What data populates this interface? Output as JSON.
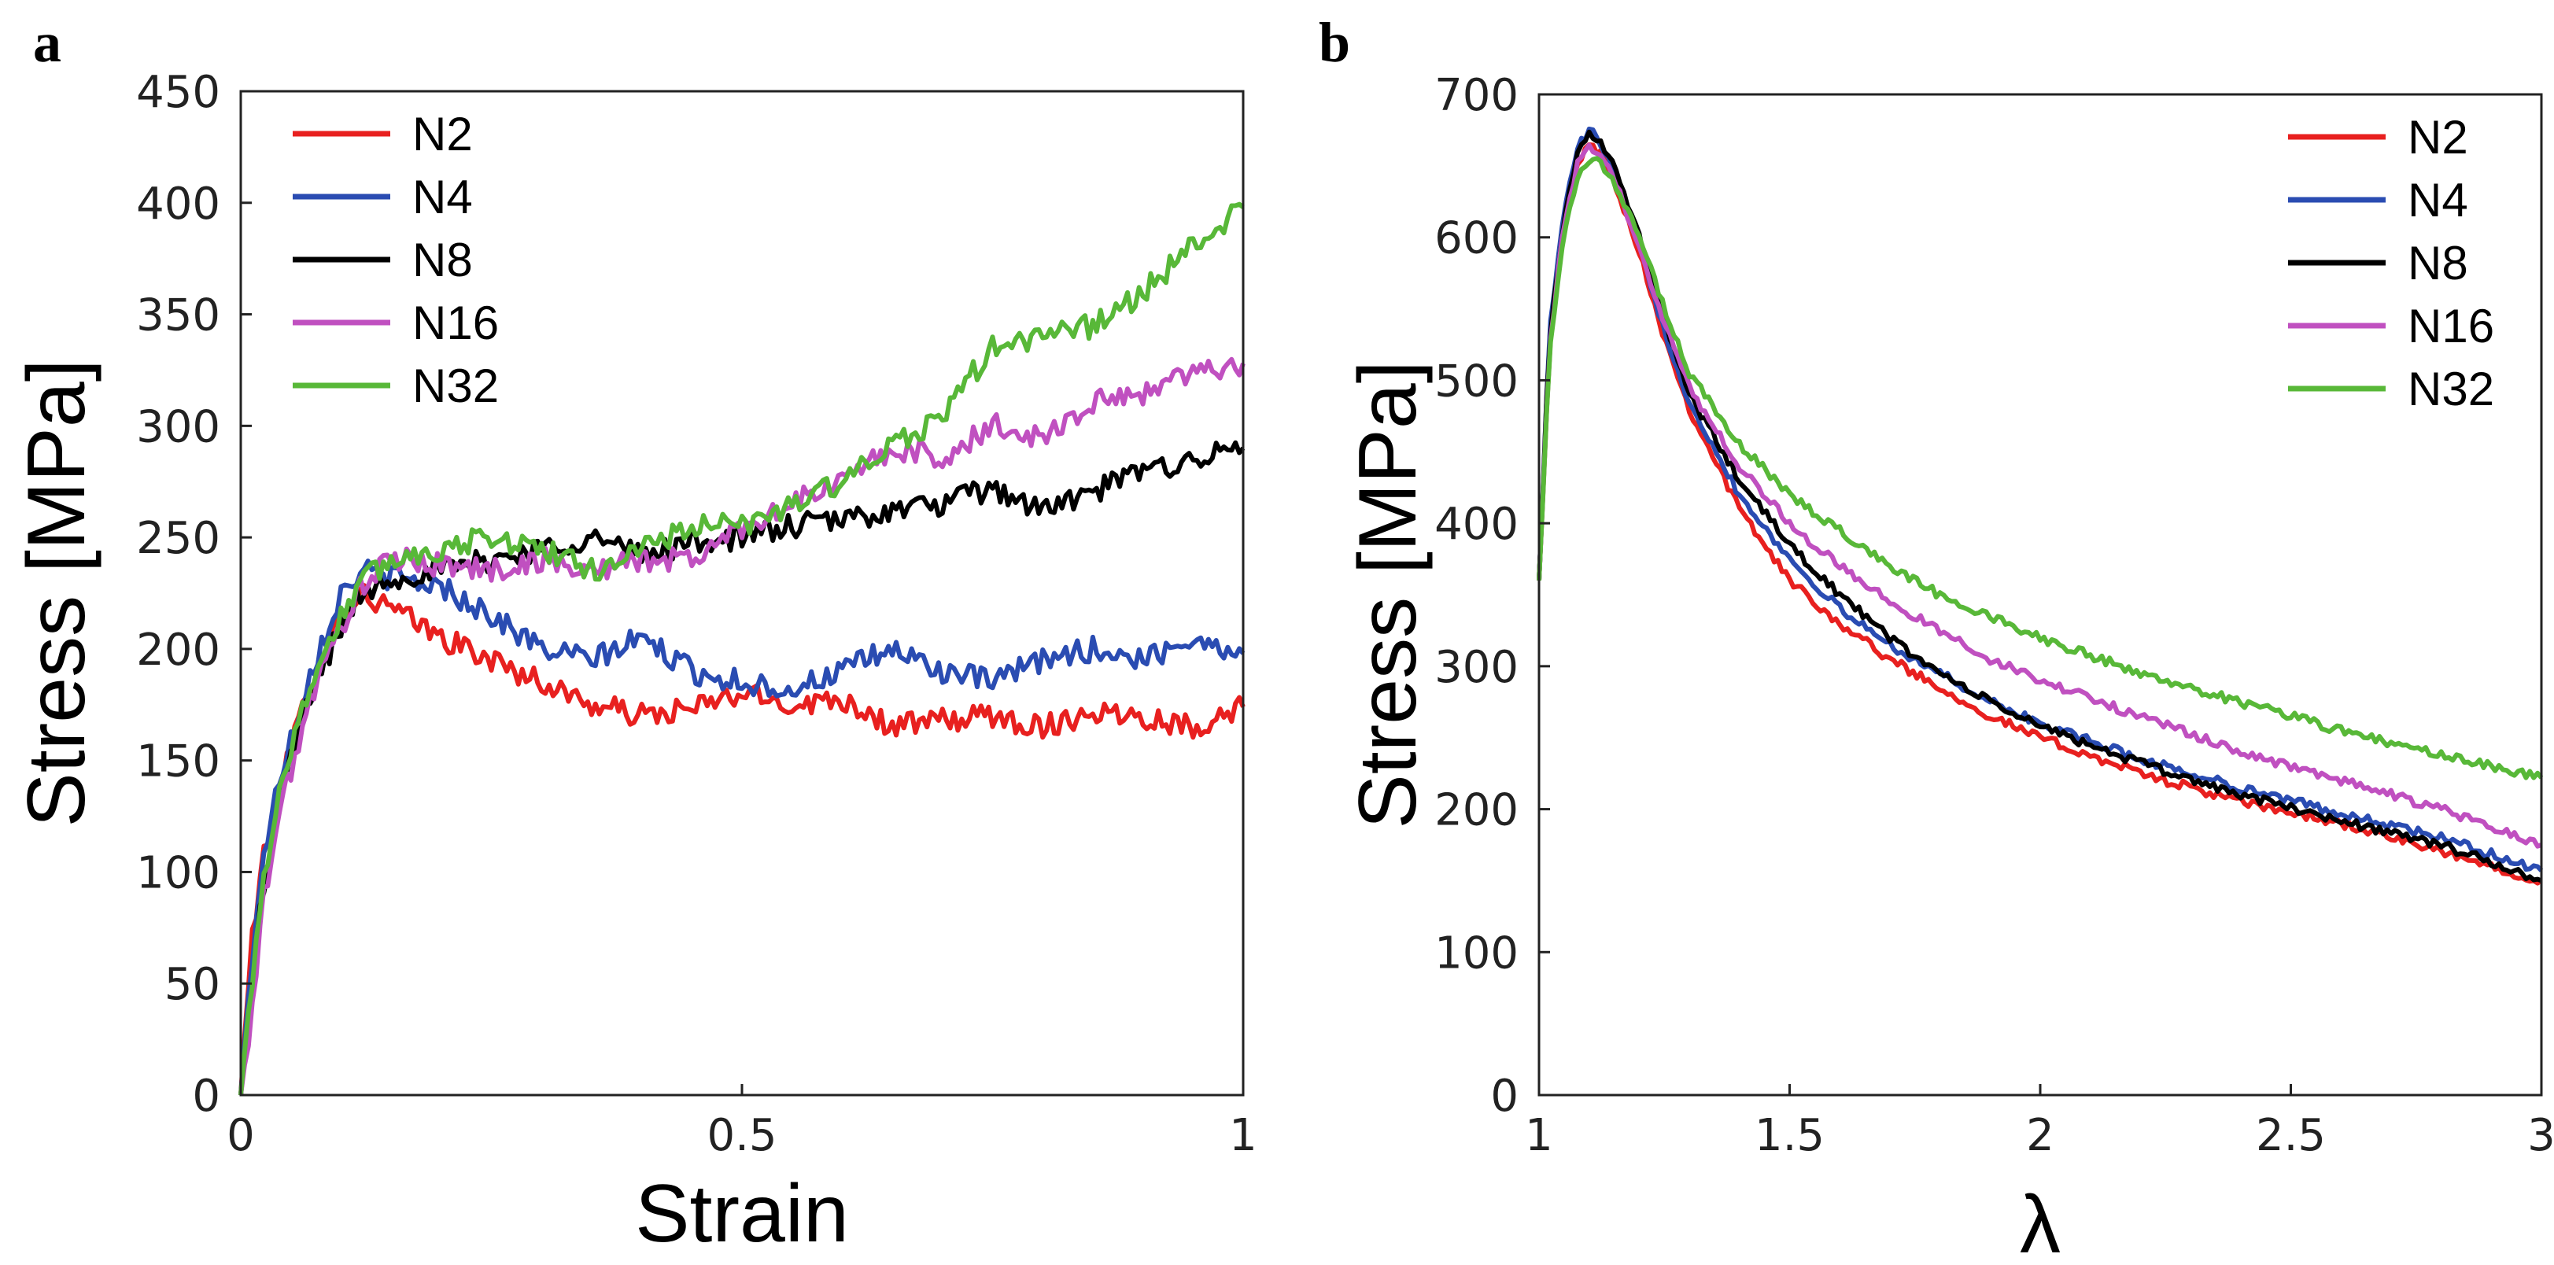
{
  "chart_data": [
    {
      "type": "line",
      "panel_label": "a",
      "xlabel": "Strain",
      "ylabel": "Stress [MPa]",
      "xlim": [
        0,
        1
      ],
      "ylim": [
        0,
        450
      ],
      "xticks": [
        0,
        0.5,
        1
      ],
      "xtick_labels": [
        "0",
        "0.5",
        "1"
      ],
      "yticks": [
        0,
        50,
        100,
        150,
        200,
        250,
        300,
        350,
        400,
        450
      ],
      "ytick_labels": [
        "0",
        "50",
        "100",
        "150",
        "200",
        "250",
        "300",
        "350",
        "400",
        "450"
      ],
      "grid": false,
      "legend_position": "top-left",
      "series": [
        {
          "name": "N2",
          "color": "#e8201f",
          "x": [
            0,
            0.01,
            0.02,
            0.04,
            0.07,
            0.1,
            0.12,
            0.15,
            0.2,
            0.25,
            0.3,
            0.35,
            0.4,
            0.45,
            0.5,
            0.55,
            0.6,
            0.65,
            0.7,
            0.75,
            0.8,
            0.85,
            0.9,
            0.95,
            1.0
          ],
          "y": [
            0,
            65,
            100,
            140,
            185,
            215,
            225,
            218,
            205,
            195,
            185,
            175,
            170,
            173,
            180,
            175,
            178,
            165,
            168,
            170,
            165,
            172,
            170,
            165,
            174
          ]
        },
        {
          "name": "N4",
          "color": "#2a4cb2",
          "x": [
            0,
            0.01,
            0.02,
            0.04,
            0.07,
            0.1,
            0.12,
            0.15,
            0.2,
            0.25,
            0.3,
            0.35,
            0.4,
            0.45,
            0.5,
            0.55,
            0.6,
            0.65,
            0.7,
            0.75,
            0.8,
            0.85,
            0.9,
            0.95,
            1.0
          ],
          "y": [
            0,
            55,
            100,
            145,
            190,
            225,
            235,
            232,
            228,
            215,
            200,
            195,
            205,
            190,
            185,
            182,
            190,
            200,
            190,
            185,
            195,
            200,
            195,
            205,
            198
          ]
        },
        {
          "name": "N8",
          "color": "#000000",
          "x": [
            0,
            0.01,
            0.02,
            0.04,
            0.07,
            0.1,
            0.12,
            0.15,
            0.2,
            0.25,
            0.3,
            0.35,
            0.4,
            0.45,
            0.5,
            0.55,
            0.6,
            0.65,
            0.7,
            0.75,
            0.8,
            0.85,
            0.9,
            0.95,
            1.0
          ],
          "y": [
            0,
            40,
            85,
            135,
            180,
            210,
            225,
            232,
            235,
            240,
            245,
            250,
            242,
            248,
            250,
            255,
            258,
            262,
            265,
            272,
            262,
            270,
            280,
            285,
            290
          ]
        },
        {
          "name": "N16",
          "color": "#c050c0",
          "x": [
            0,
            0.01,
            0.02,
            0.04,
            0.07,
            0.1,
            0.12,
            0.15,
            0.2,
            0.25,
            0.3,
            0.35,
            0.4,
            0.45,
            0.5,
            0.55,
            0.6,
            0.65,
            0.7,
            0.75,
            0.8,
            0.85,
            0.9,
            0.95,
            1.0
          ],
          "y": [
            0,
            30,
            80,
            130,
            178,
            210,
            228,
            240,
            238,
            235,
            240,
            235,
            240,
            240,
            255,
            265,
            275,
            290,
            285,
            300,
            295,
            310,
            315,
            325,
            328
          ]
        },
        {
          "name": "N32",
          "color": "#58b838",
          "x": [
            0,
            0.01,
            0.02,
            0.04,
            0.07,
            0.1,
            0.12,
            0.15,
            0.2,
            0.25,
            0.3,
            0.35,
            0.4,
            0.45,
            0.5,
            0.55,
            0.6,
            0.65,
            0.7,
            0.75,
            0.8,
            0.85,
            0.9,
            0.95,
            1.0
          ],
          "y": [
            0,
            45,
            90,
            140,
            185,
            215,
            230,
            240,
            245,
            250,
            245,
            235,
            245,
            255,
            255,
            265,
            275,
            290,
            305,
            335,
            340,
            345,
            360,
            380,
            398
          ]
        }
      ]
    },
    {
      "type": "line",
      "panel_label": "b",
      "xlabel": "λ",
      "ylabel": "Stress [MPa]",
      "xlim": [
        1,
        3
      ],
      "ylim": [
        0,
        700
      ],
      "xticks": [
        1,
        1.5,
        2,
        2.5,
        3
      ],
      "xtick_labels": [
        "1",
        "1.5",
        "2",
        "2.5",
        "3"
      ],
      "yticks": [
        0,
        100,
        200,
        300,
        400,
        500,
        600,
        700
      ],
      "ytick_labels": [
        "0",
        "100",
        "200",
        "300",
        "400",
        "500",
        "600",
        "700"
      ],
      "grid": false,
      "legend_position": "top-right",
      "series": [
        {
          "name": "N2",
          "color": "#e8201f",
          "x": [
            1.0,
            1.02,
            1.05,
            1.08,
            1.1,
            1.12,
            1.15,
            1.2,
            1.25,
            1.3,
            1.4,
            1.5,
            1.6,
            1.7,
            1.8,
            1.9,
            2.0,
            2.2,
            2.4,
            2.6,
            2.8,
            3.0
          ],
          "y": [
            360,
            520,
            610,
            655,
            665,
            660,
            640,
            590,
            530,
            480,
            410,
            360,
            330,
            305,
            285,
            265,
            250,
            225,
            205,
            190,
            170,
            150
          ]
        },
        {
          "name": "N4",
          "color": "#2a4cb2",
          "x": [
            1.0,
            1.02,
            1.05,
            1.08,
            1.1,
            1.12,
            1.15,
            1.2,
            1.25,
            1.3,
            1.4,
            1.5,
            1.6,
            1.7,
            1.8,
            1.9,
            2.0,
            2.2,
            2.4,
            2.6,
            2.8,
            3.0
          ],
          "y": [
            360,
            530,
            620,
            665,
            675,
            668,
            645,
            595,
            535,
            485,
            420,
            375,
            340,
            315,
            295,
            275,
            260,
            235,
            215,
            197,
            180,
            157
          ]
        },
        {
          "name": "N8",
          "color": "#000000",
          "x": [
            1.0,
            1.02,
            1.05,
            1.08,
            1.1,
            1.12,
            1.15,
            1.2,
            1.25,
            1.3,
            1.4,
            1.5,
            1.6,
            1.7,
            1.8,
            1.9,
            2.0,
            2.2,
            2.4,
            2.6,
            2.8,
            3.0
          ],
          "y": [
            360,
            525,
            615,
            662,
            672,
            670,
            650,
            600,
            540,
            490,
            430,
            385,
            350,
            320,
            295,
            275,
            258,
            232,
            210,
            192,
            175,
            150
          ]
        },
        {
          "name": "N16",
          "color": "#c050c0",
          "x": [
            1.0,
            1.02,
            1.05,
            1.08,
            1.1,
            1.12,
            1.15,
            1.2,
            1.25,
            1.3,
            1.4,
            1.5,
            1.6,
            1.7,
            1.8,
            1.9,
            2.0,
            2.2,
            2.4,
            2.6,
            2.8,
            3.0
          ],
          "y": [
            360,
            520,
            610,
            655,
            662,
            658,
            640,
            595,
            540,
            495,
            440,
            400,
            370,
            345,
            325,
            305,
            290,
            265,
            240,
            220,
            200,
            175
          ]
        },
        {
          "name": "N32",
          "color": "#58b838",
          "x": [
            1.0,
            1.02,
            1.05,
            1.08,
            1.1,
            1.12,
            1.15,
            1.2,
            1.25,
            1.3,
            1.4,
            1.5,
            1.6,
            1.7,
            1.8,
            1.9,
            2.0,
            2.2,
            2.4,
            2.6,
            2.8,
            3.0
          ],
          "y": [
            360,
            515,
            605,
            648,
            655,
            652,
            638,
            600,
            550,
            505,
            455,
            420,
            395,
            370,
            350,
            335,
            320,
            295,
            275,
            255,
            238,
            222
          ]
        }
      ]
    }
  ]
}
